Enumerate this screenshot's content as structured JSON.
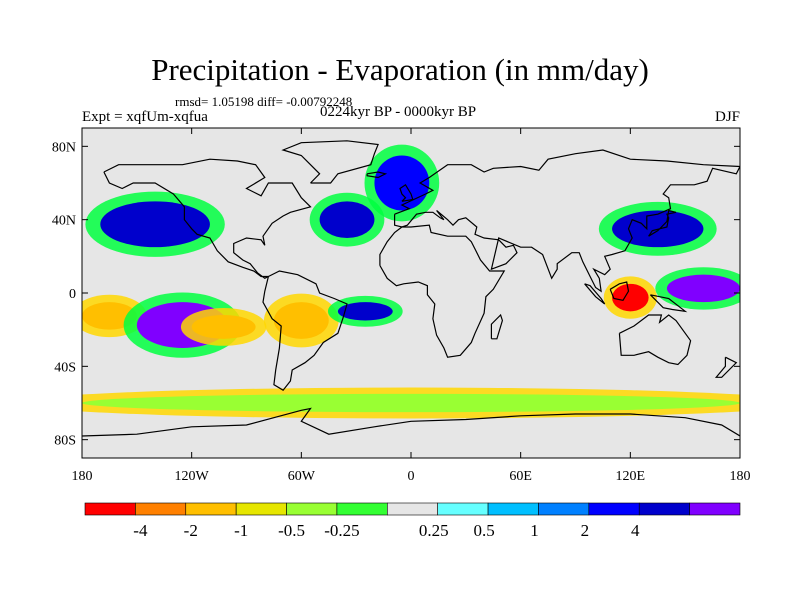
{
  "title": "Precipitation - Evaporation (in mm/day)",
  "stats": "rmsd= 1.05198 diff= -0.00792248",
  "experiment": "Expt = xqfUm-xqfua",
  "period": "0224kyr BP - 0000kyr BP",
  "season": "DJF",
  "map": {
    "lon_range": [
      -180,
      180
    ],
    "lat_range": [
      -90,
      90
    ],
    "lat_ticks": [
      {
        "value": 80,
        "label": "80N"
      },
      {
        "value": 40,
        "label": "40N"
      },
      {
        "value": 0,
        "label": "0"
      },
      {
        "value": -40,
        "label": "40S"
      },
      {
        "value": -80,
        "label": "80S"
      }
    ],
    "lon_ticks": [
      {
        "value": -180,
        "label": "180"
      },
      {
        "value": -120,
        "label": "120W"
      },
      {
        "value": -60,
        "label": "60W"
      },
      {
        "value": 0,
        "label": "0"
      },
      {
        "value": 60,
        "label": "60E"
      },
      {
        "value": 120,
        "label": "120E"
      },
      {
        "value": 180,
        "label": "180"
      }
    ],
    "background_color": "#e6e6e6"
  },
  "colorbar": {
    "colors": [
      "#ff0000",
      "#ff8000",
      "#ffbf00",
      "#e6e600",
      "#99ff33",
      "#33ff33",
      "#e6e6e6",
      "#66ffff",
      "#00bfff",
      "#0080ff",
      "#0000ff",
      "#0000cc",
      "#8000ff"
    ],
    "labels": [
      "-4",
      "-2",
      "-1",
      "-0.5",
      "-0.25",
      "0.25",
      "0.5",
      "1",
      "2",
      "4"
    ]
  },
  "chart_data": {
    "type": "heatmap",
    "title": "Precipitation - Evaporation (in mm/day)",
    "xlabel": "",
    "ylabel": "",
    "xlim": [
      -180,
      180
    ],
    "ylim": [
      -90,
      90
    ],
    "levels": [
      -4,
      -2,
      -1,
      -0.5,
      -0.25,
      0.25,
      0.5,
      1,
      2,
      4
    ],
    "regions": [
      {
        "lon": [
          -180,
          -150
        ],
        "lat": [
          -20,
          -5
        ],
        "level": -1
      },
      {
        "lon": [
          -150,
          -100
        ],
        "lat": [
          -30,
          -5
        ],
        "level": 4
      },
      {
        "lon": [
          -120,
          -85
        ],
        "lat": [
          -25,
          -12
        ],
        "level": -1
      },
      {
        "lon": [
          -170,
          -110
        ],
        "lat": [
          25,
          50
        ],
        "level": 2
      },
      {
        "lon": [
          -75,
          -45
        ],
        "lat": [
          -25,
          -5
        ],
        "level": -1
      },
      {
        "lon": [
          -40,
          -10
        ],
        "lat": [
          -15,
          -5
        ],
        "level": 2
      },
      {
        "lon": [
          -50,
          -20
        ],
        "lat": [
          30,
          50
        ],
        "level": 2
      },
      {
        "lon": [
          -20,
          10
        ],
        "lat": [
          45,
          75
        ],
        "level": 1
      },
      {
        "lon": [
          110,
          130
        ],
        "lat": [
          -10,
          5
        ],
        "level": -4
      },
      {
        "lon": [
          140,
          180
        ],
        "lat": [
          -5,
          10
        ],
        "level": 4
      },
      {
        "lon": [
          110,
          160
        ],
        "lat": [
          25,
          45
        ],
        "level": 2
      },
      {
        "lon": [
          -180,
          180
        ],
        "lat": [
          -65,
          -55
        ],
        "level": -0.25
      }
    ]
  }
}
